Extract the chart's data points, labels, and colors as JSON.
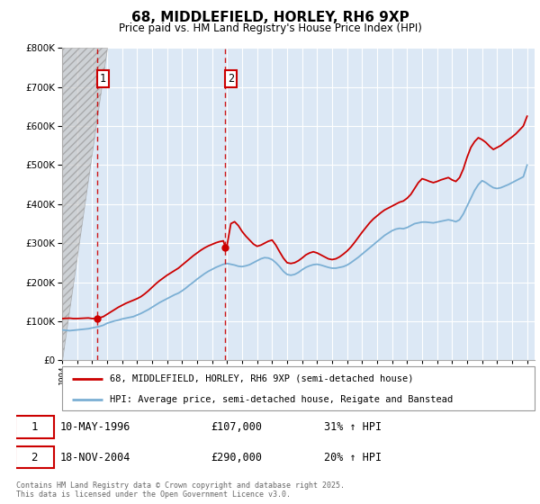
{
  "title": "68, MIDDLEFIELD, HORLEY, RH6 9XP",
  "subtitle": "Price paid vs. HM Land Registry's House Price Index (HPI)",
  "legend_line1": "68, MIDDLEFIELD, HORLEY, RH6 9XP (semi-detached house)",
  "legend_line2": "HPI: Average price, semi-detached house, Reigate and Banstead",
  "footer": "Contains HM Land Registry data © Crown copyright and database right 2025.\nThis data is licensed under the Open Government Licence v3.0.",
  "sale1_date": "10-MAY-1996",
  "sale1_price": "£107,000",
  "sale1_hpi": "31% ↑ HPI",
  "sale2_date": "18-NOV-2004",
  "sale2_price": "£290,000",
  "sale2_hpi": "20% ↑ HPI",
  "red_color": "#cc0000",
  "blue_color": "#7bafd4",
  "bg_color": "#dce8f5",
  "ylim": [
    0,
    800000
  ],
  "xlim_start": 1994.0,
  "xlim_end": 2025.5,
  "sale1_x": 1996.36,
  "sale1_y": 107000,
  "sale2_x": 2004.88,
  "sale2_y": 290000,
  "hpi_years": [
    1994.0,
    1994.25,
    1994.5,
    1994.75,
    1995.0,
    1995.25,
    1995.5,
    1995.75,
    1996.0,
    1996.25,
    1996.5,
    1996.75,
    1997.0,
    1997.25,
    1997.5,
    1997.75,
    1998.0,
    1998.25,
    1998.5,
    1998.75,
    1999.0,
    1999.25,
    1999.5,
    1999.75,
    2000.0,
    2000.25,
    2000.5,
    2000.75,
    2001.0,
    2001.25,
    2001.5,
    2001.75,
    2002.0,
    2002.25,
    2002.5,
    2002.75,
    2003.0,
    2003.25,
    2003.5,
    2003.75,
    2004.0,
    2004.25,
    2004.5,
    2004.75,
    2005.0,
    2005.25,
    2005.5,
    2005.75,
    2006.0,
    2006.25,
    2006.5,
    2006.75,
    2007.0,
    2007.25,
    2007.5,
    2007.75,
    2008.0,
    2008.25,
    2008.5,
    2008.75,
    2009.0,
    2009.25,
    2009.5,
    2009.75,
    2010.0,
    2010.25,
    2010.5,
    2010.75,
    2011.0,
    2011.25,
    2011.5,
    2011.75,
    2012.0,
    2012.25,
    2012.5,
    2012.75,
    2013.0,
    2013.25,
    2013.5,
    2013.75,
    2014.0,
    2014.25,
    2014.5,
    2014.75,
    2015.0,
    2015.25,
    2015.5,
    2015.75,
    2016.0,
    2016.25,
    2016.5,
    2016.75,
    2017.0,
    2017.25,
    2017.5,
    2017.75,
    2018.0,
    2018.25,
    2018.5,
    2018.75,
    2019.0,
    2019.25,
    2019.5,
    2019.75,
    2020.0,
    2020.25,
    2020.5,
    2020.75,
    2021.0,
    2021.25,
    2021.5,
    2021.75,
    2022.0,
    2022.25,
    2022.5,
    2022.75,
    2023.0,
    2023.25,
    2023.5,
    2023.75,
    2024.0,
    2024.25,
    2024.5,
    2024.75,
    2025.0
  ],
  "hpi_values": [
    78000,
    77000,
    76000,
    77000,
    78000,
    79000,
    80000,
    81000,
    83000,
    85000,
    87000,
    90000,
    95000,
    98000,
    101000,
    103000,
    106000,
    108000,
    110000,
    112000,
    116000,
    120000,
    125000,
    130000,
    136000,
    142000,
    148000,
    153000,
    158000,
    163000,
    168000,
    172000,
    178000,
    185000,
    193000,
    200000,
    208000,
    215000,
    222000,
    228000,
    233000,
    238000,
    242000,
    246000,
    248000,
    246000,
    244000,
    241000,
    240000,
    242000,
    245000,
    250000,
    255000,
    260000,
    263000,
    262000,
    258000,
    250000,
    240000,
    228000,
    220000,
    218000,
    220000,
    225000,
    232000,
    238000,
    242000,
    245000,
    246000,
    244000,
    241000,
    238000,
    236000,
    236000,
    238000,
    240000,
    244000,
    250000,
    257000,
    264000,
    272000,
    280000,
    288000,
    296000,
    304000,
    312000,
    320000,
    326000,
    332000,
    336000,
    338000,
    337000,
    340000,
    345000,
    350000,
    352000,
    354000,
    354000,
    353000,
    352000,
    354000,
    356000,
    358000,
    360000,
    358000,
    355000,
    360000,
    375000,
    395000,
    415000,
    435000,
    450000,
    460000,
    455000,
    448000,
    442000,
    440000,
    442000,
    446000,
    450000,
    455000,
    460000,
    465000,
    470000,
    500000
  ],
  "red_years": [
    1994.0,
    1994.25,
    1994.5,
    1994.75,
    1995.0,
    1995.25,
    1995.5,
    1995.75,
    1996.0,
    1996.25,
    1996.36,
    1996.5,
    1996.75,
    1997.0,
    1997.25,
    1997.5,
    1997.75,
    1998.0,
    1998.25,
    1998.5,
    1998.75,
    1999.0,
    1999.25,
    1999.5,
    1999.75,
    2000.0,
    2000.25,
    2000.5,
    2000.75,
    2001.0,
    2001.25,
    2001.5,
    2001.75,
    2002.0,
    2002.25,
    2002.5,
    2002.75,
    2003.0,
    2003.25,
    2003.5,
    2003.75,
    2004.0,
    2004.25,
    2004.5,
    2004.75,
    2004.88,
    2005.0,
    2005.25,
    2005.5,
    2005.75,
    2006.0,
    2006.25,
    2006.5,
    2006.75,
    2007.0,
    2007.25,
    2007.5,
    2007.75,
    2008.0,
    2008.25,
    2008.5,
    2008.75,
    2009.0,
    2009.25,
    2009.5,
    2009.75,
    2010.0,
    2010.25,
    2010.5,
    2010.75,
    2011.0,
    2011.25,
    2011.5,
    2011.75,
    2012.0,
    2012.25,
    2012.5,
    2012.75,
    2013.0,
    2013.25,
    2013.5,
    2013.75,
    2014.0,
    2014.25,
    2014.5,
    2014.75,
    2015.0,
    2015.25,
    2015.5,
    2015.75,
    2016.0,
    2016.25,
    2016.5,
    2016.75,
    2017.0,
    2017.25,
    2017.5,
    2017.75,
    2018.0,
    2018.25,
    2018.5,
    2018.75,
    2019.0,
    2019.25,
    2019.5,
    2019.75,
    2020.0,
    2020.25,
    2020.5,
    2020.75,
    2021.0,
    2021.25,
    2021.5,
    2021.75,
    2022.0,
    2022.25,
    2022.5,
    2022.75,
    2023.0,
    2023.25,
    2023.5,
    2023.75,
    2024.0,
    2024.25,
    2024.5,
    2024.75,
    2025.0
  ],
  "red_values": [
    107000,
    107500,
    108000,
    107000,
    107000,
    107500,
    108000,
    108500,
    107000,
    107500,
    107000,
    109000,
    112000,
    118000,
    124000,
    130000,
    136000,
    141000,
    146000,
    150000,
    154000,
    158000,
    163000,
    170000,
    178000,
    187000,
    196000,
    204000,
    211000,
    218000,
    224000,
    230000,
    236000,
    244000,
    252000,
    260000,
    268000,
    275000,
    282000,
    288000,
    293000,
    297000,
    301000,
    304000,
    306000,
    290000,
    295000,
    350000,
    355000,
    345000,
    330000,
    318000,
    308000,
    298000,
    292000,
    295000,
    300000,
    305000,
    308000,
    295000,
    278000,
    262000,
    250000,
    248000,
    250000,
    255000,
    262000,
    270000,
    275000,
    278000,
    275000,
    270000,
    265000,
    260000,
    258000,
    260000,
    265000,
    272000,
    280000,
    290000,
    302000,
    315000,
    328000,
    340000,
    352000,
    362000,
    370000,
    378000,
    385000,
    390000,
    395000,
    400000,
    405000,
    408000,
    415000,
    425000,
    440000,
    455000,
    465000,
    462000,
    458000,
    455000,
    458000,
    462000,
    465000,
    468000,
    462000,
    458000,
    468000,
    490000,
    520000,
    545000,
    560000,
    570000,
    565000,
    558000,
    548000,
    540000,
    545000,
    550000,
    558000,
    565000,
    572000,
    580000,
    590000,
    600000,
    625000
  ]
}
